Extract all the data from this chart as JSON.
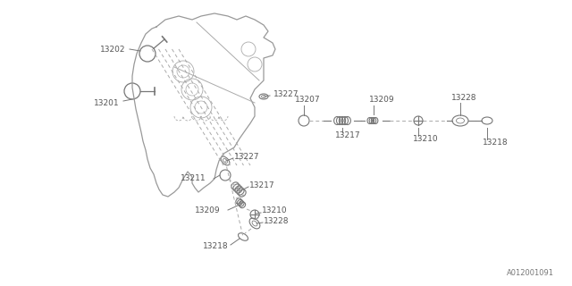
{
  "bg_color": "#ffffff",
  "line_color": "#aaaaaa",
  "text_color": "#555555",
  "part_color": "#777777",
  "title_ref": "A012001091",
  "figsize": [
    6.4,
    3.2
  ],
  "dpi": 100
}
